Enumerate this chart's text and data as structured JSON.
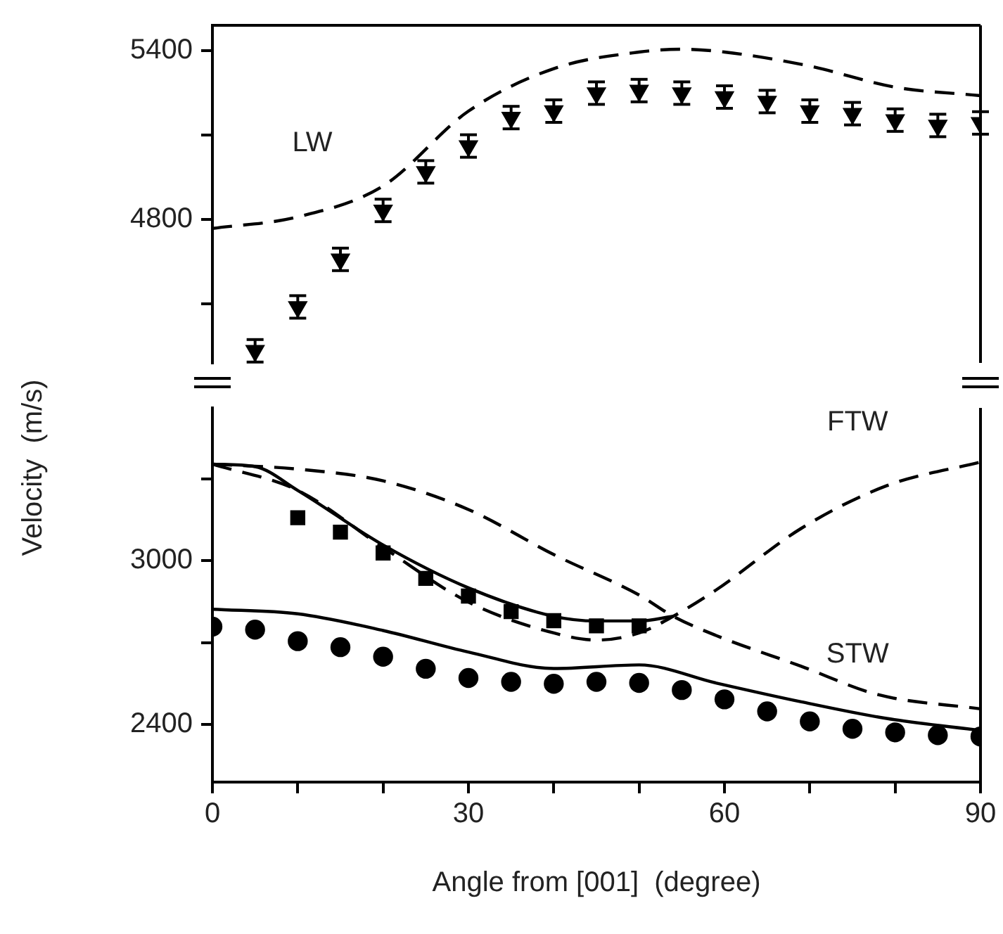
{
  "chart_data": [
    {
      "type": "scatter",
      "xlim": [
        0,
        90
      ],
      "ylim": [
        4290,
        5490
      ],
      "yticks": [
        {
          "value": 4500,
          "label": null
        },
        4800,
        {
          "value": 5100,
          "label": null
        },
        5400
      ],
      "tick_labels": "y",
      "legend": false,
      "annotations": [
        "LW"
      ],
      "series": [
        {
          "type": "line",
          "color": "#000000",
          "marker": "none",
          "line_style": "dashed",
          "x": [
            0,
            10,
            20,
            30,
            40,
            50,
            55,
            60,
            70,
            80,
            90
          ],
          "values": [
            4768,
            4809,
            4919,
            5185,
            5336,
            5395,
            5405,
            5395,
            5345,
            5270,
            5240
          ]
        },
        {
          "type": "scatter",
          "color": "#000000",
          "marker": "triangle",
          "x": [
            5,
            10,
            15,
            20,
            25,
            30,
            35,
            40,
            45,
            50,
            55,
            60,
            65,
            70,
            75,
            80,
            85,
            90
          ],
          "values": [
            4333,
            4489,
            4658,
            4832,
            4969,
            5061,
            5162,
            5185,
            5249,
            5258,
            5249,
            5235,
            5219,
            5185,
            5176,
            5153,
            5134,
            5143
          ],
          "errors": [
            40,
            40,
            40,
            40,
            40,
            40,
            40,
            40,
            40,
            40,
            40,
            40,
            40,
            40,
            40,
            40,
            40,
            40
          ]
        }
      ]
    },
    {
      "type": "scatter",
      "xlim": [
        0,
        90
      ],
      "xticks": [
        0,
        {
          "value": 10,
          "label": null
        },
        {
          "value": 20,
          "label": null
        },
        30,
        {
          "value": 40,
          "label": null
        },
        {
          "value": 50,
          "label": null
        },
        60,
        {
          "value": 70,
          "label": null
        },
        {
          "value": 80,
          "label": null
        },
        90
      ],
      "ylim": [
        2190,
        3560
      ],
      "yticks": [
        2400,
        {
          "value": 2700,
          "label": null
        },
        3000,
        {
          "value": 3300,
          "label": null
        }
      ],
      "xlabel": "Angle from [001]  (degree)",
      "ylabel": "Velocity  (m/s)",
      "legend": false,
      "annotations": [
        "FTW",
        "STW"
      ],
      "series": [
        {
          "type": "line",
          "color": "#000000",
          "marker": "none",
          "line_style": "dashed",
          "x": [
            0,
            10,
            20,
            30,
            40,
            50,
            54,
            59,
            69,
            78,
            90
          ],
          "values": [
            3354,
            3336,
            3293,
            3188,
            3023,
            2875,
            2797,
            2727,
            2614,
            2510,
            2458
          ]
        },
        {
          "type": "line",
          "color": "#000000",
          "marker": "none",
          "line_style": "dashed",
          "x": [
            0,
            10,
            20,
            30,
            40,
            45,
            50,
            54,
            59,
            69,
            79,
            90
          ],
          "values": [
            3354,
            3258,
            3049,
            2849,
            2736,
            2710,
            2736,
            2797,
            2893,
            3119,
            3275,
            3362
          ]
        },
        {
          "type": "line",
          "color": "#000000",
          "marker": "none",
          "line_style": "solid",
          "x": [
            0,
            5,
            10,
            20,
            30,
            40,
            45,
            50,
            54
          ],
          "values": [
            3354,
            3345,
            3258,
            3058,
            2901,
            2797,
            2780,
            2780,
            2797
          ]
        },
        {
          "type": "line",
          "color": "#000000",
          "marker": "none",
          "line_style": "solid",
          "x": [
            0,
            10,
            20,
            30,
            40,
            50,
            59,
            69,
            79,
            90
          ],
          "values": [
            2823,
            2806,
            2745,
            2666,
            2606,
            2619,
            2553,
            2484,
            2423,
            2379
          ]
        },
        {
          "type": "scatter",
          "color": "#000000",
          "marker": "square",
          "x": [
            10,
            15,
            20,
            25,
            30,
            35,
            40,
            45,
            50
          ],
          "values": [
            3158,
            3105,
            3029,
            2936,
            2871,
            2814,
            2781,
            2762,
            2762
          ]
        },
        {
          "type": "scatter",
          "color": "#000000",
          "marker": "circle",
          "x": [
            0,
            5,
            10,
            15,
            20,
            25,
            30,
            35,
            40,
            45,
            50,
            55,
            60,
            65,
            70,
            75,
            80,
            85,
            90
          ],
          "values": [
            2759,
            2748,
            2706,
            2684,
            2649,
            2605,
            2571,
            2557,
            2550,
            2557,
            2553,
            2527,
            2493,
            2449,
            2412,
            2385,
            2372,
            2362,
            2357
          ]
        }
      ]
    }
  ]
}
